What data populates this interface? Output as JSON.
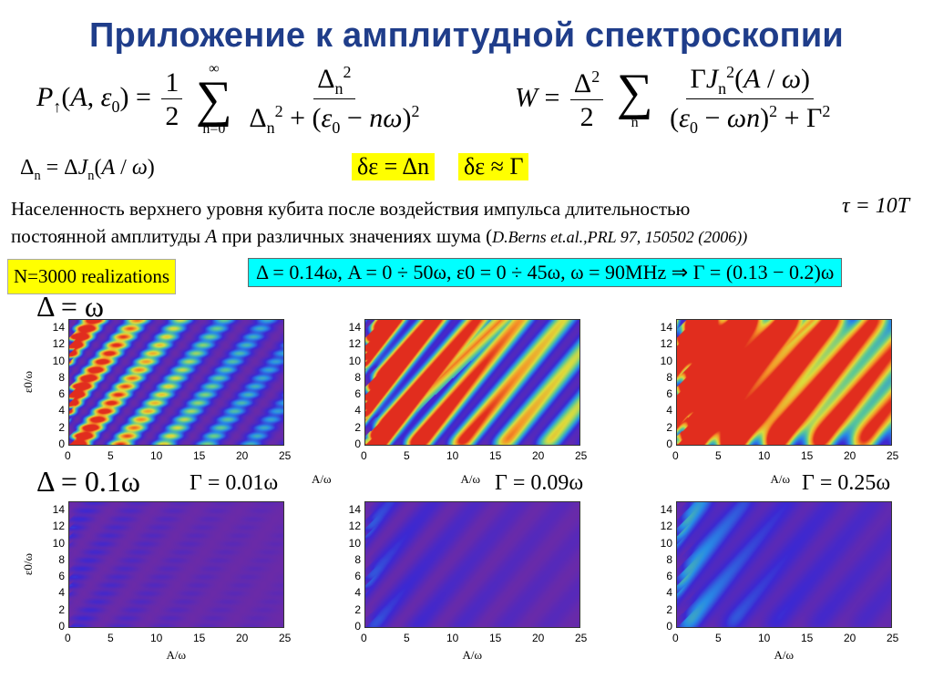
{
  "title": "Приложение к амплитудной спектроскопии",
  "formula_p": "P↑(A, ε0) = ½ Σ(n=0..∞) Δn² / (Δn² + (ε0 − nω)²)",
  "formula_w": "W = Δ²/2 Σn ΓJn²(A/ω) / ((ε0 − ωn)² + Γ²)",
  "formula_delta_n": "Δn = ΔJn(A/ω)",
  "box1": "δε = Δn",
  "box2": "δε ≈ Γ",
  "paragraph": {
    "line1": "Населенность верхнего уровня кубита после воздействия импульса длительностью",
    "tau": "τ = 10T",
    "line2_a": "постоянной амплитуды ",
    "line2_A": "A",
    "line2_b": " при различных значениях шума (",
    "ref": "D.Berns et.al.,PRL 97, 150502 (2006))"
  },
  "realizations": "N=3000 realizations",
  "params": "Δ = 0.14ω, A = 0 ÷ 50ω, ε0 = 0 ÷ 45ω, ω = 90MHz ⇒ Γ = (0.13 − 0.2)ω",
  "row_labels": {
    "top": "Δ = ω",
    "bottom": "Δ = 0.1ω"
  },
  "gamma_labels": [
    "Γ = 0.01ω",
    "Γ = 0.09ω",
    "Γ = 0.25ω"
  ],
  "axis": {
    "xlabel": "A/ω",
    "ylabel": "ε0/ω",
    "x_ticks": [
      "0",
      "5",
      "10",
      "15",
      "20",
      "25"
    ],
    "y_ticks": [
      "0",
      "2",
      "4",
      "6",
      "8",
      "10",
      "12",
      "14"
    ]
  },
  "colors": {
    "title": "#1f3d8a",
    "highlight_yellow": "#ffff00",
    "highlight_cyan": "#00ffff",
    "plot_bg_top": "#6a2aa8",
    "plot_bg_bottom": "#6a2aa8"
  },
  "chart_data": {
    "type": "heatmap",
    "grid": "2x3",
    "xlim": [
      0,
      25
    ],
    "ylim": [
      0,
      15
    ],
    "xlabel": "A/ω",
    "ylabel": "ε0/ω",
    "rows": [
      "Δ = ω",
      "Δ = 0.1ω"
    ],
    "columns": [
      "Γ = 0.01ω",
      "Γ = 0.09ω",
      "Γ = 0.25ω"
    ]
  }
}
